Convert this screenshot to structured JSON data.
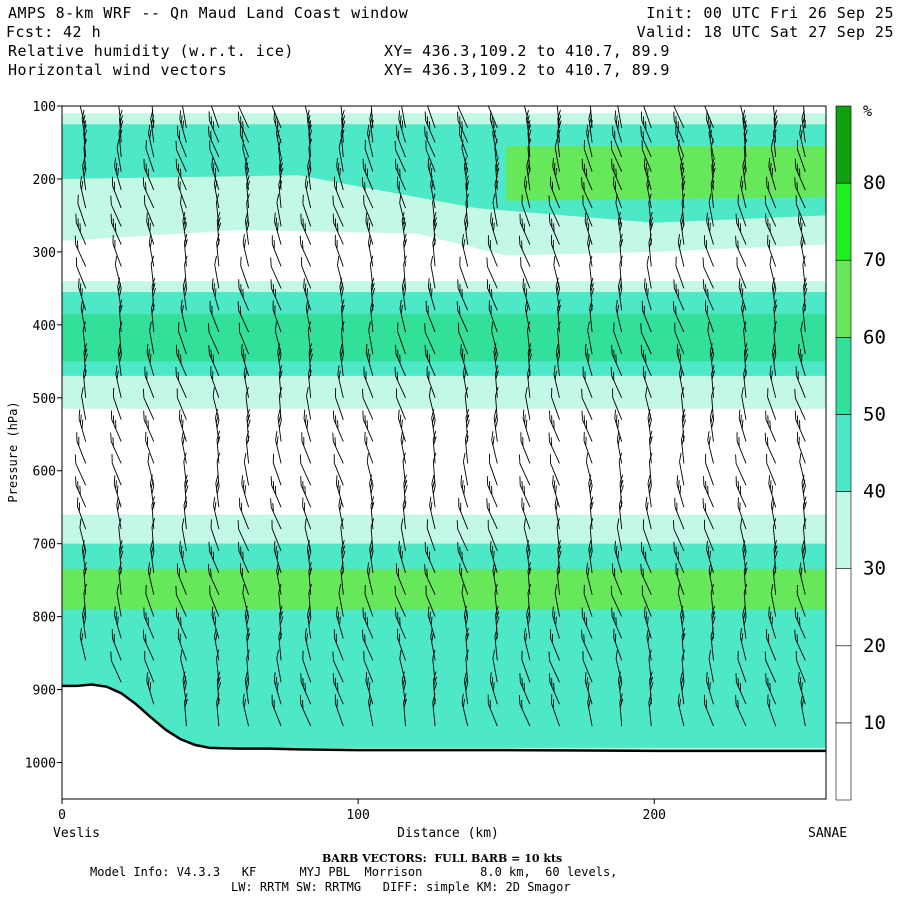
{
  "header": {
    "title": "AMPS 8-km WRF -- Qn Maud Land Coast window",
    "fcst_label": "Fcst:",
    "fcst_value": "42 h",
    "field1": "Relative humidity (w.r.t. ice)",
    "field2": "Horizontal wind vectors",
    "xy1": "XY= 436.3,109.2 to 410.7, 89.9",
    "xy2": "XY= 436.3,109.2 to 410.7, 89.9",
    "init": "Init: 00 UTC Fri 26 Sep 25",
    "valid": "Valid: 18 UTC Sat 27 Sep 25"
  },
  "footer": {
    "barb_note": "BARB VECTORS:  FULL BARB = 10 kts",
    "model_info": "Model Info: V4.3.3   KF      MYJ PBL  Morrison        8.0 km,  60 levels,",
    "physics": "LW: RRTM SW: RRTMG   DIFF: simple KM: 2D Smagor"
  },
  "chart_data": {
    "type": "heatmap",
    "title": "Relative humidity (w.r.t. ice) and horizontal wind vectors, cross-section Veslis to SANAE",
    "xlabel": "Distance (km)",
    "ylabel": "Pressure (hPa)",
    "xlim": [
      0,
      258
    ],
    "ylim": [
      1050,
      100
    ],
    "x_ticks": [
      "0",
      "100",
      "200"
    ],
    "x_tick_values": [
      0,
      100,
      200
    ],
    "y_ticks": [
      "100",
      "200",
      "300",
      "400",
      "500",
      "600",
      "700",
      "800",
      "900",
      "1000"
    ],
    "y_tick_values": [
      100,
      200,
      300,
      400,
      500,
      600,
      700,
      800,
      900,
      1000
    ],
    "x_start_label": "Veslis",
    "x_end_label": "SANAE",
    "colorbar": {
      "unit": "%",
      "labels": [
        "10",
        "20",
        "30",
        "40",
        "50",
        "60",
        "70",
        "80"
      ],
      "levels": [
        0,
        10,
        20,
        30,
        40,
        50,
        60,
        70,
        80,
        90
      ],
      "colors": [
        "#ffffff",
        "#ffffff",
        "#ffffff",
        "#c3f8e4",
        "#4de8c8",
        "#33e099",
        "#66e85a",
        "#22ee22",
        "#10a010"
      ]
    },
    "humidity_layers": [
      {
        "name": "upper layer",
        "bottom_hPa": [
          [
            0,
            285
          ],
          [
            60,
            270
          ],
          [
            120,
            275
          ],
          [
            150,
            305
          ],
          [
            200,
            300
          ],
          [
            258,
            290
          ]
        ],
        "top_hPa": 110,
        "rh_min": 30
      },
      {
        "name": "upper core",
        "bottom_hPa": [
          [
            0,
            200
          ],
          [
            80,
            195
          ],
          [
            140,
            240
          ],
          [
            200,
            260
          ],
          [
            258,
            250
          ]
        ],
        "top_hPa": 125,
        "rh_min": 40
      },
      {
        "name": "upper max",
        "bottom_hPa": [
          [
            150,
            230
          ],
          [
            258,
            225
          ]
        ],
        "top_hPa": 155,
        "rh_min": 60
      },
      {
        "name": "mid layer",
        "range_hPa": [
          340,
          515
        ],
        "rh_min": 30
      },
      {
        "name": "mid core",
        "range_hPa": [
          355,
          470
        ],
        "rh_min": 40
      },
      {
        "name": "mid max",
        "range_hPa": [
          385,
          450
        ],
        "rh_min": 50
      },
      {
        "name": "low layer",
        "range_hPa": [
          660,
          990
        ],
        "rh_min": 30
      },
      {
        "name": "low core",
        "range_hPa": [
          700,
          980
        ],
        "rh_min": 40
      },
      {
        "name": "low max",
        "range_hPa": [
          735,
          790
        ],
        "rh_min": 60
      }
    ],
    "terrain_hPa": {
      "x": [
        0,
        5,
        10,
        15,
        20,
        25,
        30,
        35,
        40,
        45,
        50,
        60,
        70,
        80,
        100,
        150,
        200,
        258
      ],
      "p": [
        895,
        895,
        893,
        896,
        905,
        920,
        938,
        955,
        968,
        976,
        980,
        981,
        981,
        982,
        983,
        983,
        984,
        984
      ]
    },
    "wind_barbs": {
      "x_columns_km": [
        8,
        20,
        31,
        42,
        53,
        63,
        74,
        84,
        95,
        105,
        116,
        126,
        137,
        147,
        158,
        168,
        179,
        189,
        199,
        210,
        220,
        231,
        241,
        251
      ],
      "pressure_levels_hPa": [
        130,
        150,
        170,
        190,
        215,
        240,
        265,
        290,
        320,
        350,
        380,
        410,
        440,
        470,
        500,
        530,
        560,
        590,
        620,
        650,
        680,
        710,
        740,
        770,
        800,
        830,
        860,
        890,
        920,
        950,
        980
      ],
      "full_barb_kts": 10
    }
  }
}
